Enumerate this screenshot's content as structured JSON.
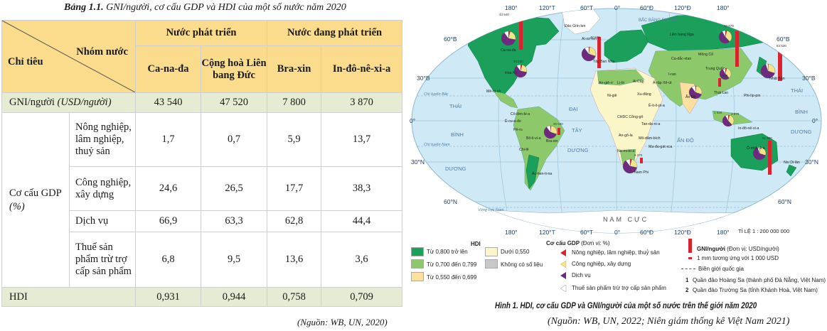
{
  "table": {
    "title_bold": "Bảng 1.1.",
    "title_rest": " GNI/người, cơ cấu GDP và HDI của một số nước năm 2020",
    "corner_top": "Nhóm nước",
    "corner_bottom": "Chỉ tiêu",
    "group_developed": "Nước phát triển",
    "group_developing": "Nước đang phát triển",
    "countries": [
      "Ca-na-đa",
      "Cộng hoà Liên bang Đức",
      "Bra-xin",
      "In-đô-nê-xi-a"
    ],
    "gni_label": "GNI/người",
    "gni_unit": "(USD/người)",
    "gni_values": [
      "43 540",
      "47 520",
      "7 800",
      "3 870"
    ],
    "gdp_label": "Cơ cấu GDP",
    "gdp_unit": "(%)",
    "sectors": [
      {
        "name": "Nông nghiệp, lâm nghiệp, thuỷ sản",
        "values": [
          "1,7",
          "0,7",
          "5,9",
          "13,7"
        ]
      },
      {
        "name": "Công nghiệp, xây dựng",
        "values": [
          "24,6",
          "26,5",
          "17,7",
          "38,3"
        ]
      },
      {
        "name": "Dịch vụ",
        "values": [
          "66,9",
          "63,3",
          "62,8",
          "44,4"
        ]
      },
      {
        "name": "Thuế sản phẩm trừ trợ cấp sản phẩm",
        "values": [
          "6,8",
          "9,5",
          "13,6",
          "3,6"
        ]
      }
    ],
    "hdi_label": "HDI",
    "hdi_values": [
      "0,931",
      "0,944",
      "0,758",
      "0,709"
    ],
    "source": "(Nguồn: WB, UN, 2020)"
  },
  "map": {
    "longitudes": [
      "180°",
      "120°T",
      "60°T",
      "0°",
      "60°Đ",
      "120°Đ",
      "180°"
    ],
    "latitudes": [
      "60°B",
      "30°B",
      "0°",
      "30°N",
      "60°N"
    ],
    "oceans": [
      "BẮC BĂNG DƯƠNG",
      "THÁI",
      "BÌNH",
      "DƯƠNG",
      "ĐẠI",
      "TÂY",
      "DƯƠNG",
      "ẤN ĐỘ",
      "THÁI",
      "BÌNH",
      "DƯƠNG",
      "NAM CỰC"
    ],
    "lines": [
      "Chí tuyến Bắc",
      "Chí tuyến Nam",
      "Vòng cực Nam"
    ],
    "country_labels": [
      "Đảo Grin-len",
      "Ca-na-đa",
      "Hoa Kỳ",
      "Mê-hi-cô",
      "Cô-lôm-bi-a",
      "Ê-cu-a-đo",
      "Pê-ru",
      "Bra-xin",
      "Bô-li-vi-a",
      "Chi-lê",
      "Ác-hen-ti-na",
      "Ai-xơ-len",
      "Liên bang Nga",
      "Mông Cổ",
      "Trung Quốc",
      "Nhật Bản",
      "Ấn Độ",
      "In-đô-nê-xi-a",
      "Ô-xtrây-li-a",
      "Niu Di-lân",
      "Nam Phi",
      "An-giê-ri",
      "Li-bi",
      "Ai Cập",
      "Ni-giê",
      "Xu-đăng",
      "CHDC Công-gô",
      "An-gô-la",
      "Ê-ti-ô-pi-a",
      "Ả-rập Xê-út",
      "I-ran",
      "Ca-dắc-xtan",
      "Thái Lan",
      "Phi-líp-pin",
      "Ma-đa-gát-xca",
      "Tan-da-ni-a",
      "Mô-dăm-bích",
      "Na-mi-bi-a",
      "Tây Ban Nha"
    ],
    "scale": "TỈ LỆ 1 : 200 000 000",
    "gni_small_labels": [
      "43 540",
      "47 520",
      "40 870",
      "63 530",
      "10 530",
      "40 040",
      "7 800",
      "1 930",
      "3 870",
      "51 680",
      "5 370"
    ],
    "legend": {
      "hdi_title": "HDI",
      "hdi_items": [
        "Từ 0,800 trở lên",
        "Từ 0,700 đến 0,799",
        "Từ 0,550 đến 0,699",
        "Dưới 0,550",
        "Không có số liệu"
      ],
      "hdi_colors": [
        "#1aa05a",
        "#8dc86a",
        "#fbe0a0",
        "#fbf6c8",
        "#c8c8c8"
      ],
      "gdp_title": "Cơ cấu GDP",
      "gdp_unit": "(Đơn vị: %)",
      "gdp_items": [
        "Nông nghiệp, lâm nghiệp, thuỷ sản",
        "Công nghiệp, xây dựng",
        "Dịch vụ",
        "Thuế sản phẩm trừ trợ cấp sản phẩm"
      ],
      "gdp_colors": [
        "#d9232e",
        "#f3e48a",
        "#6d2a7f",
        "#ffffff"
      ],
      "gni_title": "GNI/người",
      "gni_unit": "(Đơn vị: USD/người)",
      "gni_scale": "1 mm tương ứng với 1 000 USD",
      "border": "Biên giới quốc gia",
      "island1_num": "1",
      "island1": "Quần đảo Hoàng Sa (thành phố Đà Nẵng, Việt Nam)",
      "island2_num": "2",
      "island2": "Quần đảo Trường Sa (tỉnh Khánh Hoà, Việt Nam)"
    },
    "caption": "Hình 1. HDI, cơ cấu GDP và GNI/người của một số nước trên thế giới năm 2020",
    "source": "(Nguồn: WB, UN, 2022; Niên giám thống kê Việt Nam 2021)"
  }
}
